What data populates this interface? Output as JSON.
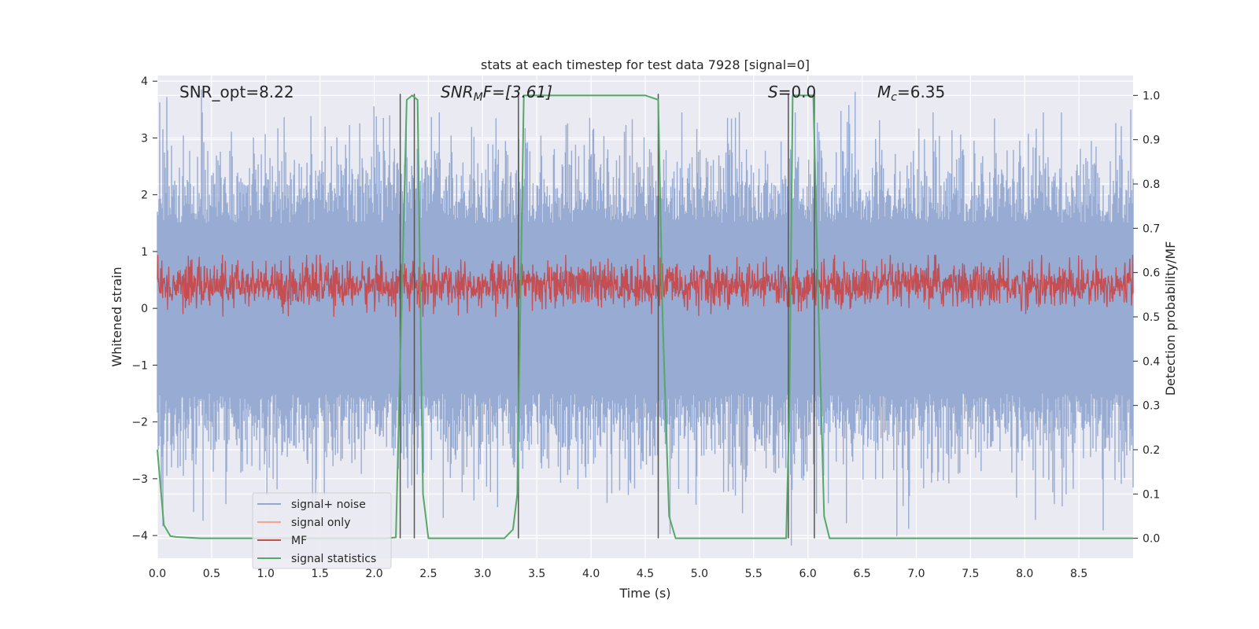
{
  "chart_data": {
    "type": "line",
    "title": "stats at each timestep for test data 7928 [signal=0]",
    "xlabel": "Time (s)",
    "ylabel": "Whitened strain",
    "y2label": "Detection probability/MF",
    "xlim": [
      0.0,
      9.0
    ],
    "ylim": [
      -4.4,
      4.1
    ],
    "y2lim": [
      -0.045,
      1.045
    ],
    "xticks": [
      "0.0",
      "0.5",
      "1.0",
      "1.5",
      "2.0",
      "2.5",
      "3.0",
      "3.5",
      "4.0",
      "4.5",
      "5.0",
      "5.5",
      "6.0",
      "6.5",
      "7.0",
      "7.5",
      "8.0",
      "8.5"
    ],
    "yticks": [
      "4",
      "3",
      "2",
      "1",
      "0",
      "−1",
      "−2",
      "−3",
      "−4"
    ],
    "y2ticks": [
      "1.0",
      "0.9",
      "0.8",
      "0.7",
      "0.6",
      "0.5",
      "0.4",
      "0.3",
      "0.2",
      "0.1",
      "0.0"
    ],
    "annotations": {
      "snr_opt": "SNR_opt=8.22",
      "snr_mf_main": "SNR",
      "snr_mf_sub": "M",
      "snr_mf_rest": "F=[3.61]",
      "s_main": "S",
      "s_rest": "=0.0",
      "mc_main": "M",
      "mc_sub": "c",
      "mc_rest": "=6.35"
    },
    "series": [
      {
        "name": "signal+ noise",
        "color": "#92a8d1",
        "axis": "left",
        "envelope": {
          "pos_max": 3.45,
          "neg_min": -4.0,
          "typical_amp": 2.0
        }
      },
      {
        "name": "signal only",
        "color": "#f2a58a",
        "axis": "left",
        "values": []
      },
      {
        "name": "MF",
        "color": "#c44e52",
        "axis": "right",
        "range": [
          0.5,
          0.64
        ]
      },
      {
        "name": "signal statistics",
        "color": "#55a868",
        "axis": "right",
        "x": [
          0.0,
          0.06,
          0.12,
          0.18,
          0.4,
          1.0,
          2.0,
          2.1,
          2.2,
          2.25,
          2.3,
          2.35,
          2.4,
          2.45,
          2.5,
          3.2,
          3.28,
          3.32,
          3.38,
          3.5,
          4.0,
          4.5,
          4.62,
          4.66,
          4.72,
          4.78,
          5.5,
          5.8,
          5.83,
          5.86,
          5.9,
          6.05,
          6.1,
          6.15,
          6.2,
          7.0,
          8.0,
          9.0
        ],
        "y": [
          0.2,
          0.03,
          0.005,
          0.003,
          0.0,
          0.0,
          0.0,
          0.0,
          0.002,
          0.5,
          0.99,
          1.0,
          0.99,
          0.1,
          0.0,
          0.0,
          0.02,
          0.1,
          1.0,
          1.0,
          1.0,
          1.0,
          0.99,
          0.5,
          0.05,
          0.0,
          0.0,
          0.0,
          0.3,
          1.0,
          1.0,
          1.0,
          0.5,
          0.05,
          0.0,
          0.0,
          0.0,
          0.0
        ]
      },
      {
        "name": "event markers",
        "color": "#555555",
        "axis": "right",
        "x": [
          2.24,
          2.37,
          3.33,
          4.62,
          5.82,
          6.06
        ],
        "values": [
          1.0,
          1.0,
          1.0,
          1.0,
          1.0,
          1.0
        ]
      }
    ],
    "legend": {
      "location": "lower-left",
      "entries": [
        "signal+ noise",
        "signal only",
        "MF",
        "signal statistics"
      ]
    }
  }
}
